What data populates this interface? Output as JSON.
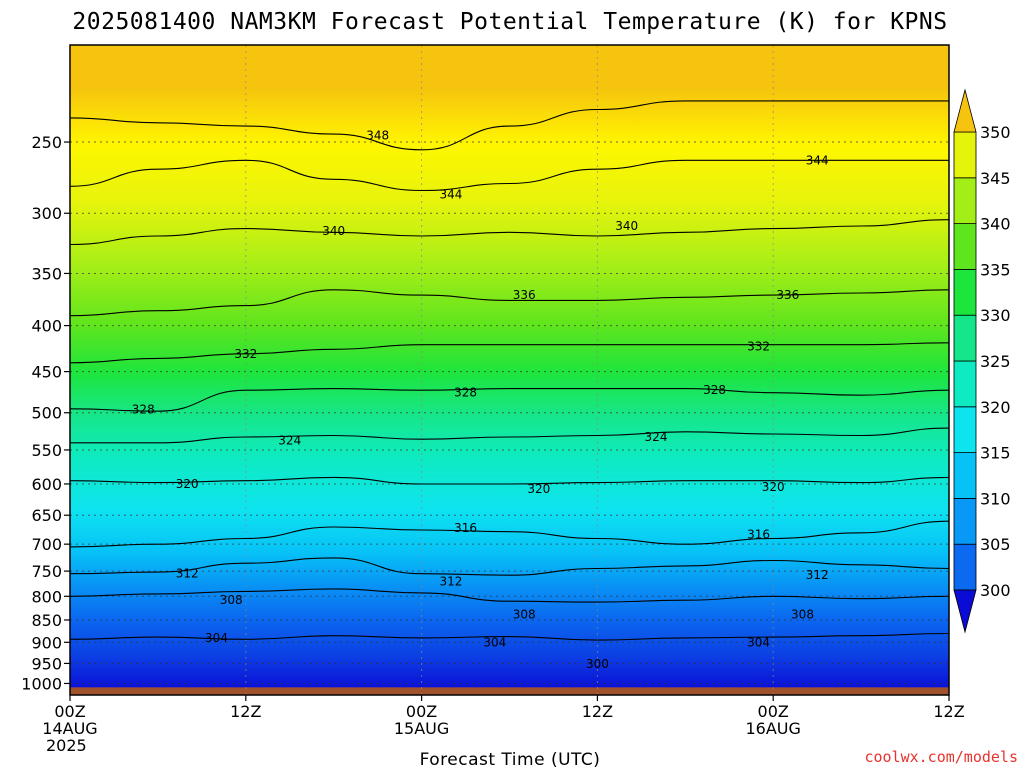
{
  "chart_data": {
    "type": "heatmap",
    "title": "2025081400 NAM3KM Forecast Potential Temperature (K) for KPNS",
    "xlabel": "Forecast Time (UTC)",
    "ylabel": "",
    "y_scale": "log-pressure",
    "y_reversed": true,
    "ylim": [
      1030,
      195
    ],
    "y_ticks": [
      250,
      300,
      350,
      400,
      450,
      500,
      550,
      600,
      650,
      700,
      750,
      800,
      850,
      900,
      950,
      1000
    ],
    "x_unit": "forecast hour",
    "xlim": [
      0,
      60
    ],
    "x_ticks": [
      {
        "x": 0,
        "lines": [
          "00Z",
          "14AUG",
          "2025"
        ]
      },
      {
        "x": 12,
        "lines": [
          "12Z"
        ]
      },
      {
        "x": 24,
        "lines": [
          "00Z",
          "15AUG"
        ]
      },
      {
        "x": 36,
        "lines": [
          "12Z"
        ]
      },
      {
        "x": 48,
        "lines": [
          "00Z",
          "16AUG"
        ]
      },
      {
        "x": 60,
        "lines": [
          "12Z"
        ]
      }
    ],
    "grid": true,
    "colorbar": {
      "levels": [
        300,
        305,
        310,
        315,
        320,
        325,
        330,
        335,
        340,
        345,
        350
      ],
      "colors": [
        "#0b0bd6",
        "#0c3fe3",
        "#0b6af0",
        "#0898f5",
        "#07c2f7",
        "#0ee3f0",
        "#0eebc3",
        "#16e68a",
        "#1ee53c",
        "#5fe51d",
        "#a4ee17",
        "#e6f40c",
        "#fff600",
        "#f6c40e"
      ],
      "extend": "both"
    },
    "series": [
      {
        "name": "theta",
        "level": 304,
        "x": [
          0,
          6,
          12,
          18,
          24,
          30,
          36,
          42,
          48,
          54,
          60
        ],
        "y": [
          893,
          888,
          893,
          885,
          890,
          887,
          895,
          890,
          888,
          885,
          880
        ]
      },
      {
        "name": "theta",
        "level": 308,
        "x": [
          0,
          6,
          12,
          18,
          24,
          30,
          36,
          42,
          48,
          54,
          60
        ],
        "y": [
          800,
          795,
          790,
          785,
          793,
          810,
          812,
          808,
          800,
          805,
          800
        ]
      },
      {
        "name": "theta",
        "level": 312,
        "x": [
          0,
          6,
          12,
          18,
          24,
          30,
          36,
          42,
          48,
          54,
          60
        ],
        "y": [
          755,
          752,
          735,
          725,
          755,
          758,
          745,
          740,
          730,
          738,
          745
        ]
      },
      {
        "name": "theta",
        "level": 316,
        "x": [
          0,
          6,
          12,
          18,
          24,
          30,
          36,
          42,
          48,
          54,
          60
        ],
        "y": [
          705,
          700,
          690,
          670,
          675,
          678,
          690,
          700,
          690,
          680,
          660
        ]
      },
      {
        "name": "theta",
        "level": 320,
        "x": [
          0,
          6,
          12,
          18,
          24,
          30,
          36,
          42,
          48,
          54,
          60
        ],
        "y": [
          595,
          598,
          595,
          590,
          600,
          600,
          598,
          595,
          595,
          598,
          590
        ]
      },
      {
        "name": "theta",
        "level": 324,
        "x": [
          0,
          6,
          12,
          18,
          24,
          30,
          36,
          42,
          48,
          54,
          60
        ],
        "y": [
          540,
          540,
          532,
          530,
          535,
          532,
          530,
          525,
          528,
          530,
          520
        ]
      },
      {
        "name": "theta",
        "level": 328,
        "x": [
          0,
          6,
          12,
          18,
          24,
          30,
          36,
          42,
          48,
          54,
          60
        ],
        "y": [
          495,
          498,
          472,
          470,
          472,
          470,
          470,
          470,
          475,
          478,
          472
        ]
      },
      {
        "name": "theta",
        "level": 332,
        "x": [
          0,
          6,
          12,
          18,
          24,
          30,
          36,
          42,
          48,
          54,
          60
        ],
        "y": [
          440,
          435,
          430,
          425,
          420,
          420,
          420,
          420,
          420,
          420,
          418
        ]
      },
      {
        "name": "theta",
        "level": 336,
        "x": [
          0,
          6,
          12,
          18,
          24,
          30,
          36,
          42,
          48,
          54,
          60
        ],
        "y": [
          390,
          385,
          380,
          365,
          370,
          375,
          375,
          372,
          370,
          368,
          365
        ]
      },
      {
        "name": "theta",
        "level": 340,
        "x": [
          0,
          6,
          12,
          18,
          24,
          30,
          36,
          42,
          48,
          54,
          60
        ],
        "y": [
          325,
          318,
          312,
          315,
          318,
          315,
          318,
          315,
          312,
          310,
          305
        ]
      },
      {
        "name": "theta",
        "level": 344,
        "x": [
          0,
          6,
          12,
          18,
          24,
          30,
          36,
          42,
          48,
          54,
          60
        ],
        "y": [
          280,
          268,
          262,
          275,
          283,
          278,
          268,
          262,
          262,
          262,
          262
        ]
      },
      {
        "name": "theta",
        "level": 348,
        "x": [
          0,
          6,
          12,
          18,
          24,
          30,
          36,
          42,
          48,
          54,
          60
        ],
        "y": [
          235,
          238,
          240,
          245,
          255,
          240,
          230,
          225,
          225,
          225,
          225
        ]
      }
    ],
    "contour_labels": [
      {
        "text": "348",
        "x": 21,
        "y": 246
      },
      {
        "text": "344",
        "x": 26,
        "y": 286
      },
      {
        "text": "344",
        "x": 51,
        "y": 262
      },
      {
        "text": "340",
        "x": 18,
        "y": 314
      },
      {
        "text": "340",
        "x": 38,
        "y": 310
      },
      {
        "text": "336",
        "x": 31,
        "y": 370
      },
      {
        "text": "336",
        "x": 49,
        "y": 370
      },
      {
        "text": "332",
        "x": 12,
        "y": 430
      },
      {
        "text": "332",
        "x": 47,
        "y": 422
      },
      {
        "text": "328",
        "x": 5,
        "y": 496
      },
      {
        "text": "328",
        "x": 27,
        "y": 475
      },
      {
        "text": "328",
        "x": 44,
        "y": 472
      },
      {
        "text": "324",
        "x": 15,
        "y": 537
      },
      {
        "text": "324",
        "x": 40,
        "y": 532
      },
      {
        "text": "320",
        "x": 8,
        "y": 600
      },
      {
        "text": "320",
        "x": 32,
        "y": 608
      },
      {
        "text": "320",
        "x": 48,
        "y": 605
      },
      {
        "text": "316",
        "x": 27,
        "y": 672
      },
      {
        "text": "316",
        "x": 47,
        "y": 683
      },
      {
        "text": "312",
        "x": 8,
        "y": 755
      },
      {
        "text": "312",
        "x": 26,
        "y": 770
      },
      {
        "text": "312",
        "x": 51,
        "y": 758
      },
      {
        "text": "308",
        "x": 11,
        "y": 808
      },
      {
        "text": "308",
        "x": 31,
        "y": 838
      },
      {
        "text": "308",
        "x": 50,
        "y": 838
      },
      {
        "text": "304",
        "x": 10,
        "y": 890
      },
      {
        "text": "304",
        "x": 29,
        "y": 901
      },
      {
        "text": "304",
        "x": 47,
        "y": 901
      },
      {
        "text": "300",
        "x": 36,
        "y": 952
      }
    ],
    "ground_color": "#a0522d",
    "surface_pressure": 1010
  },
  "credit": "coolwx.com/models"
}
